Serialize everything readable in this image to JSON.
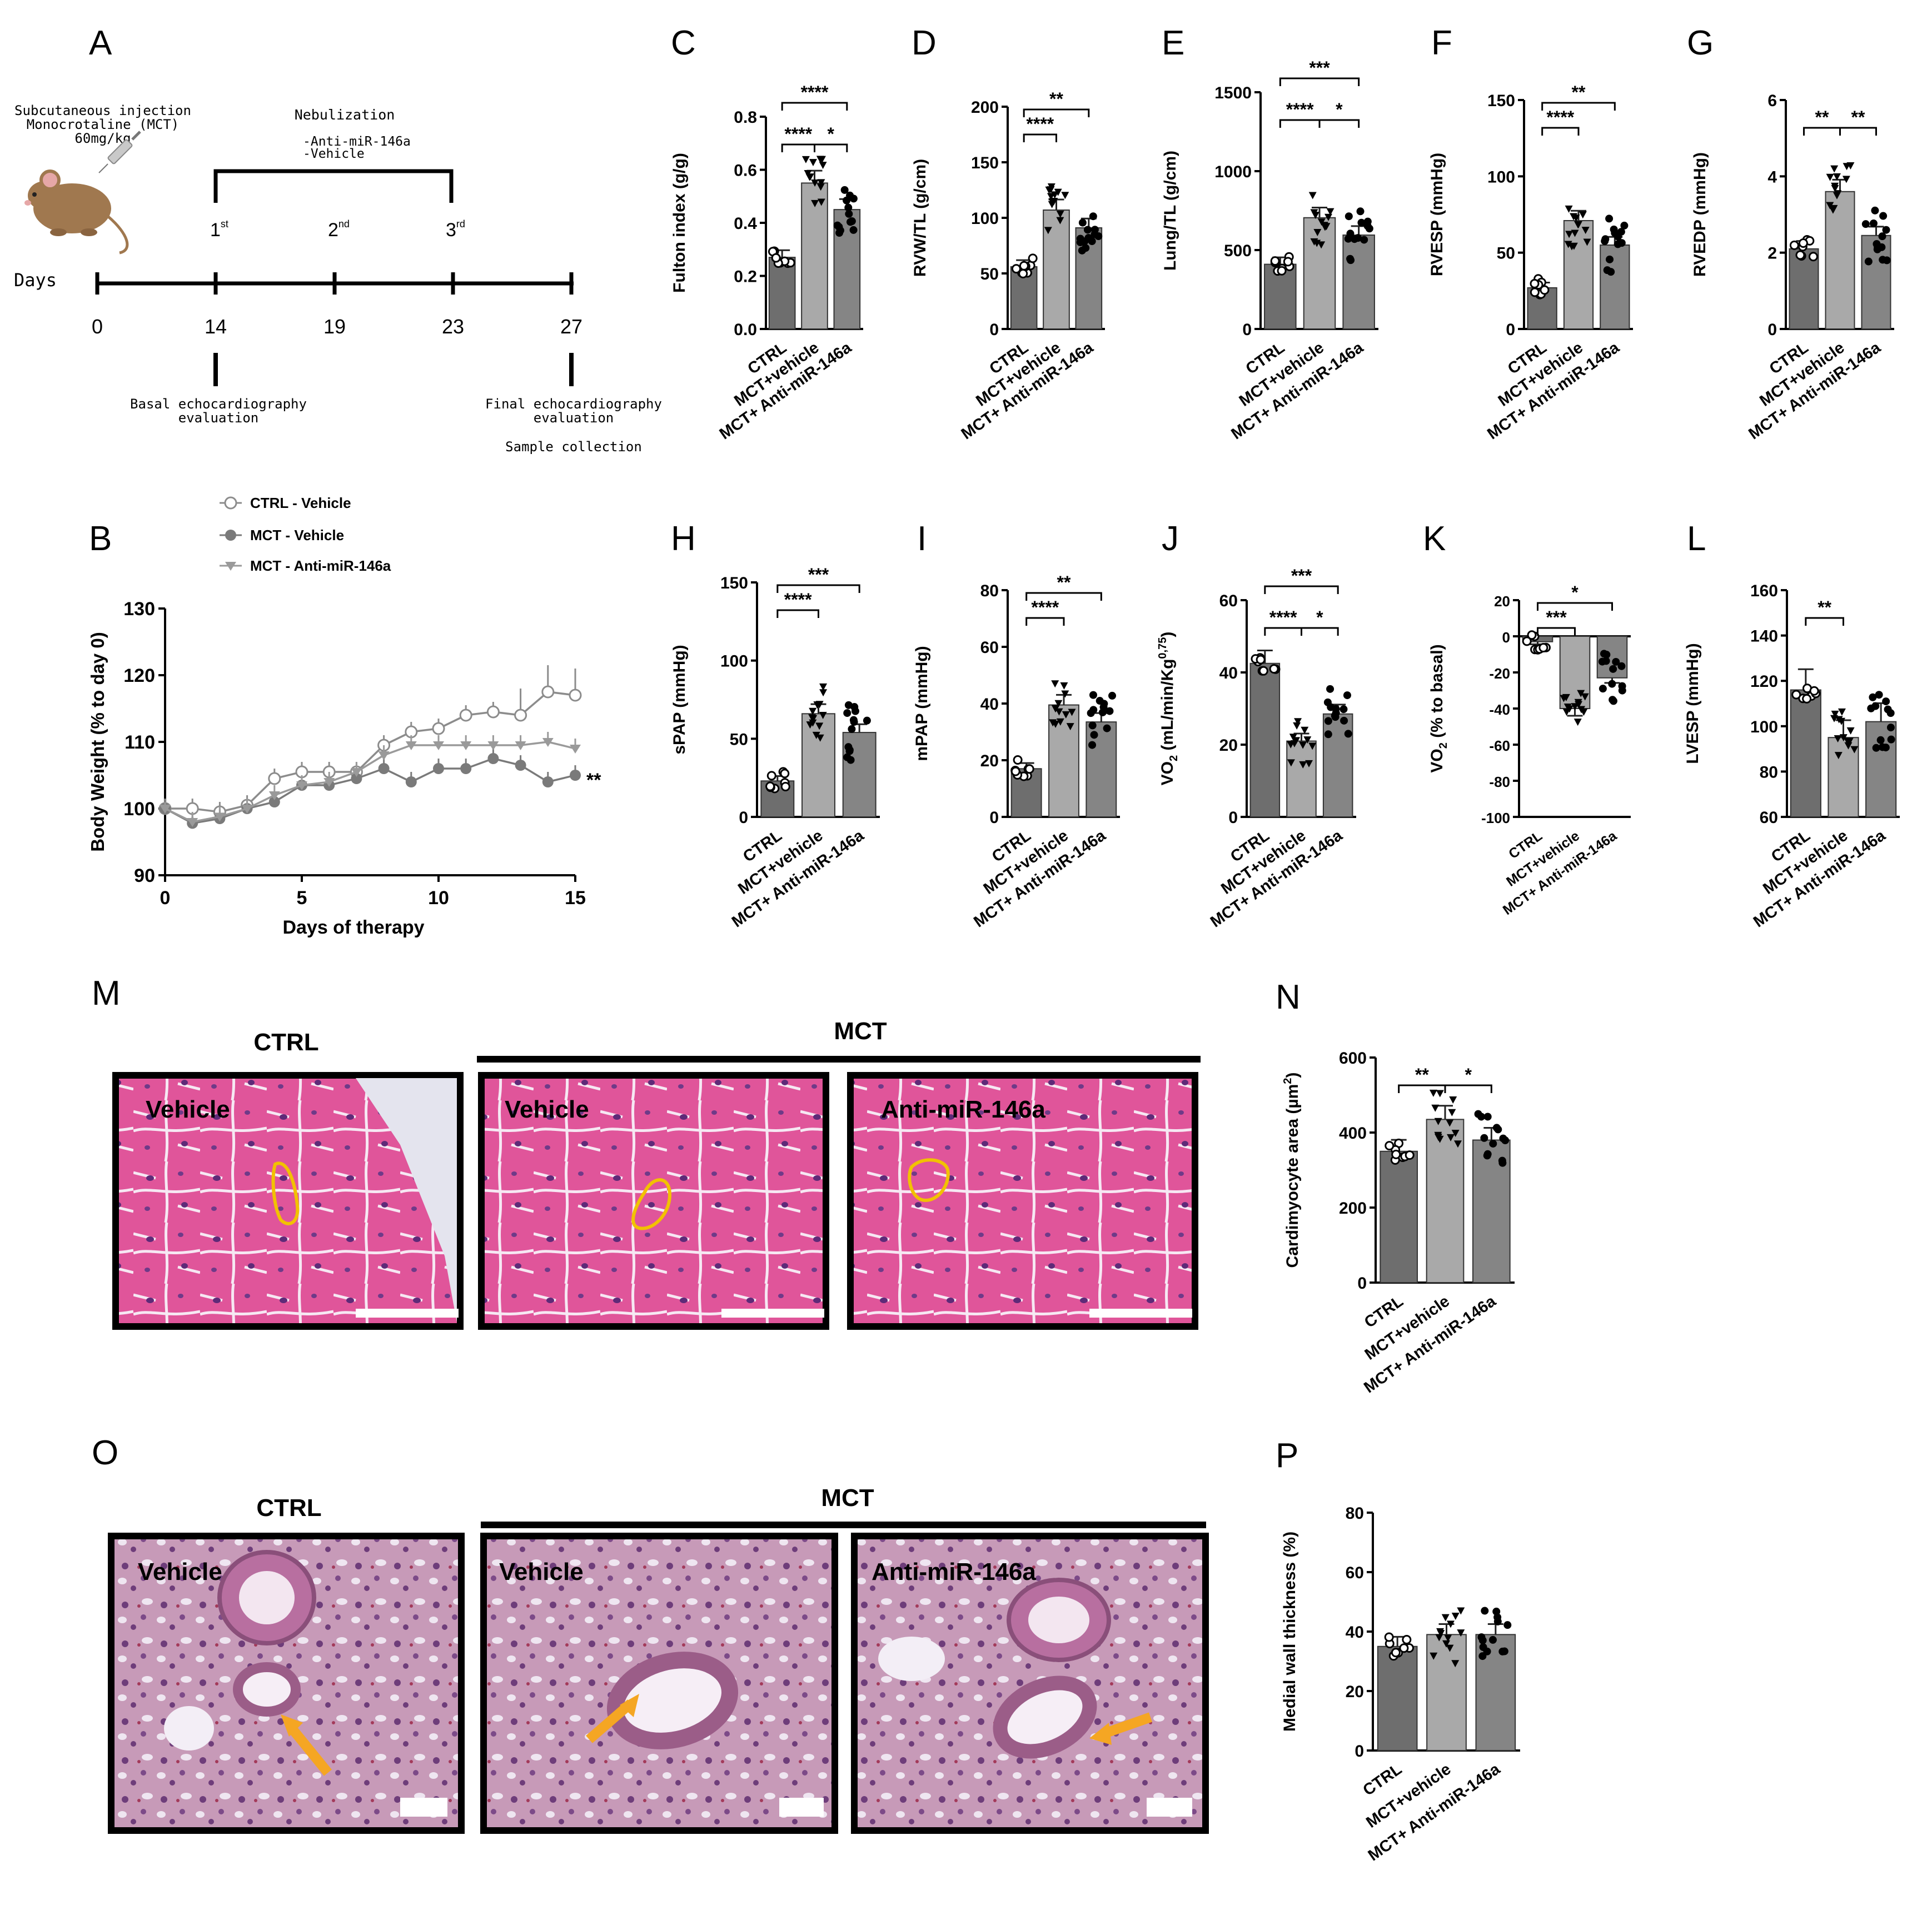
{
  "panel_labels": [
    "A",
    "B",
    "C",
    "D",
    "E",
    "F",
    "G",
    "H",
    "I",
    "J",
    "K",
    "L",
    "M",
    "N",
    "O",
    "P"
  ],
  "timeline": {
    "injection_lines": [
      "Subcutaneous injection",
      "Monocrotaline (MCT)",
      "60mg/kg"
    ],
    "nebulization_title": "Nebulization",
    "nebulization_items": [
      "-Anti-miR-146a",
      "-Vehicle"
    ],
    "doses": [
      {
        "n": "1",
        "sup": "st"
      },
      {
        "n": "2",
        "sup": "nd"
      },
      {
        "n": "3",
        "sup": "rd"
      }
    ],
    "days_label": "Days",
    "day_ticks": [
      "0",
      "14",
      "19",
      "23",
      "27"
    ],
    "basal_lines": [
      "Basal echocardiography",
      "evaluation"
    ],
    "final_lines": [
      "Final echocardiography",
      "evaluation"
    ],
    "sample_collection": "Sample collection"
  },
  "legend_b": [
    "CTRL - Vehicle",
    "MCT - Vehicle",
    "MCT - Anti-miR-146a"
  ],
  "colors": {
    "ctrl_bar": "#6e6e6e",
    "veh_bar": "#a9a9a9",
    "anti_bar": "#858585",
    "line_ctrl": "#8c8c8c",
    "line_mct": "#7a7a7a",
    "line_anti": "#9a9a9a",
    "outline_yellow": "#f2c100",
    "arrow_orange": "#f5a623",
    "he_stain_m": "#e0559a",
    "he_stain_o": "#c79ab8"
  },
  "bar_groups": [
    "CTRL",
    "MCT+vehicle",
    "MCT+ Anti-miR-146a"
  ],
  "chart_data": [
    {
      "panel": "B",
      "type": "line",
      "xlabel": "Days of therapy",
      "ylabel": "Body Weight (% to day 0)",
      "xlim": [
        0,
        15
      ],
      "ylim": [
        90,
        130
      ],
      "x_ticks": [
        "0",
        "5",
        "10",
        "15"
      ],
      "y_ticks": [
        "90",
        "100",
        "110",
        "120",
        "130"
      ],
      "annotation": "**",
      "x": [
        0,
        1,
        2,
        3,
        4,
        5,
        6,
        7,
        8,
        9,
        10,
        11,
        12,
        13,
        14,
        15
      ],
      "series": [
        {
          "name": "CTRL - Vehicle",
          "values": [
            100,
            100,
            99.5,
            100.5,
            104.5,
            105.5,
            105.5,
            105.5,
            109.5,
            111.5,
            112,
            114,
            114.5,
            114,
            117.5,
            117
          ]
        },
        {
          "name": "MCT - Vehicle",
          "values": [
            100,
            97.8,
            98.5,
            100,
            101,
            103.5,
            103.5,
            104.5,
            106,
            104,
            106,
            106,
            107.5,
            106.5,
            104,
            105
          ]
        },
        {
          "name": "MCT - Anti-miR-146a",
          "values": [
            100,
            98,
            98.8,
            100,
            102,
            103.5,
            104,
            105.5,
            108,
            109.5,
            109.5,
            109.5,
            109.5,
            109.5,
            110,
            109
          ]
        }
      ]
    },
    {
      "panel": "C",
      "type": "bar",
      "categories": [
        "CTRL",
        "MCT+vehicle",
        "MCT+ Anti-miR-146a"
      ],
      "ylabel": "Fulton index (g/g)",
      "ylim": [
        0,
        0.8
      ],
      "y_ticks": [
        "0.0",
        "0.2",
        "0.4",
        "0.6",
        "0.8"
      ],
      "values": [
        0.27,
        0.55,
        0.45
      ],
      "significance": [
        {
          "pair": [
            0,
            1
          ],
          "label": "****"
        },
        {
          "pair": [
            1,
            2
          ],
          "label": "*"
        },
        {
          "pair": [
            0,
            2
          ],
          "label": "****"
        }
      ]
    },
    {
      "panel": "D",
      "type": "bar",
      "categories": [
        "CTRL",
        "MCT+vehicle",
        "MCT+ Anti-miR-146a"
      ],
      "ylabel": "RVW/TL (g/cm)",
      "ylim": [
        0,
        200
      ],
      "y_ticks": [
        "0",
        "50",
        "100",
        "150",
        "200"
      ],
      "values": [
        56,
        107,
        91
      ],
      "significance": [
        {
          "pair": [
            0,
            1
          ],
          "label": "****"
        },
        {
          "pair": [
            0,
            2
          ],
          "label": "**"
        }
      ]
    },
    {
      "panel": "E",
      "type": "bar",
      "categories": [
        "CTRL",
        "MCT+vehicle",
        "MCT+ Anti-miR-146a"
      ],
      "ylabel": "Lung/TL (g/cm)",
      "ylim": [
        0,
        1500
      ],
      "y_ticks": [
        "0",
        "500",
        "1000",
        "1500"
      ],
      "values": [
        410,
        705,
        595
      ],
      "significance": [
        {
          "pair": [
            0,
            1
          ],
          "label": "****"
        },
        {
          "pair": [
            1,
            2
          ],
          "label": "*"
        },
        {
          "pair": [
            0,
            2
          ],
          "label": "***"
        }
      ]
    },
    {
      "panel": "F",
      "type": "bar",
      "categories": [
        "CTRL",
        "MCT+vehicle",
        "MCT+ Anti-miR-146a"
      ],
      "ylabel": "RVESP (mmHg)",
      "ylim": [
        0,
        150
      ],
      "y_ticks": [
        "0",
        "50",
        "100",
        "150"
      ],
      "values": [
        27,
        71,
        55
      ],
      "significance": [
        {
          "pair": [
            0,
            1
          ],
          "label": "****"
        },
        {
          "pair": [
            0,
            2
          ],
          "label": "**"
        }
      ]
    },
    {
      "panel": "G",
      "type": "bar",
      "categories": [
        "CTRL",
        "MCT+vehicle",
        "MCT+ Anti-miR-146a"
      ],
      "ylabel": "RVEDP (mmHg)",
      "ylim": [
        0,
        6
      ],
      "y_ticks": [
        "0",
        "2",
        "4",
        "6"
      ],
      "values": [
        2.1,
        3.6,
        2.45
      ],
      "significance": [
        {
          "pair": [
            0,
            1
          ],
          "label": "**"
        },
        {
          "pair": [
            1,
            2
          ],
          "label": "**"
        }
      ]
    },
    {
      "panel": "H",
      "type": "bar",
      "categories": [
        "CTRL",
        "MCT+vehicle",
        "MCT+ Anti-miR-146a"
      ],
      "ylabel": "sPAP (mmHg)",
      "ylim": [
        0,
        150
      ],
      "y_ticks": [
        "0",
        "50",
        "100",
        "150"
      ],
      "values": [
        23,
        66,
        54
      ],
      "significance": [
        {
          "pair": [
            0,
            1
          ],
          "label": "****"
        },
        {
          "pair": [
            0,
            2
          ],
          "label": "***"
        }
      ]
    },
    {
      "panel": "I",
      "type": "bar",
      "categories": [
        "CTRL",
        "MCT+vehicle",
        "MCT+ Anti-miR-146a"
      ],
      "ylabel": "mPAP (mmHg)",
      "ylim": [
        0,
        80
      ],
      "y_ticks": [
        "0",
        "20",
        "40",
        "60",
        "80"
      ],
      "values": [
        17,
        39.5,
        33.5
      ],
      "significance": [
        {
          "pair": [
            0,
            1
          ],
          "label": "****"
        },
        {
          "pair": [
            0,
            2
          ],
          "label": "**"
        }
      ]
    },
    {
      "panel": "J",
      "type": "bar",
      "categories": [
        "CTRL",
        "MCT+vehicle",
        "MCT+ Anti-miR-146a"
      ],
      "ylabel": "VO",
      "ylabel_sub": "2",
      "ylabel_rest": " (mL/min/Kg",
      "ylabel_sup": "0,75",
      "ylabel_end": ")",
      "ylim": [
        0,
        60
      ],
      "y_ticks": [
        "0",
        "20",
        "40",
        "60"
      ],
      "values": [
        42.5,
        21,
        28.5
      ],
      "significance": [
        {
          "pair": [
            0,
            1
          ],
          "label": "****"
        },
        {
          "pair": [
            1,
            2
          ],
          "label": "*"
        },
        {
          "pair": [
            0,
            2
          ],
          "label": "***"
        }
      ]
    },
    {
      "panel": "K",
      "type": "bar",
      "categories": [
        "CTRL",
        "MCT+vehicle",
        "MCT+ Anti-miR-146a"
      ],
      "ylabel": "VO",
      "ylabel_sub": "2",
      "ylabel_rest": " (% to basal)",
      "ylim": [
        -100,
        20
      ],
      "y_ticks": [
        "-100",
        "-80",
        "-60",
        "-40",
        "-20",
        "0",
        "20"
      ],
      "values": [
        -3,
        -40,
        -23
      ],
      "significance": [
        {
          "pair": [
            0,
            1
          ],
          "label": "***"
        },
        {
          "pair": [
            0,
            2
          ],
          "label": "*"
        }
      ]
    },
    {
      "panel": "L",
      "type": "bar",
      "categories": [
        "CTRL",
        "MCT+vehicle",
        "MCT+ Anti-miR-146a"
      ],
      "ylabel": "LVESP (mmHg)",
      "ylim": [
        60,
        160
      ],
      "y_ticks": [
        "60",
        "80",
        "100",
        "120",
        "140",
        "160"
      ],
      "values": [
        116,
        95,
        102
      ],
      "significance": [
        {
          "pair": [
            0,
            1
          ],
          "label": "**"
        }
      ]
    },
    {
      "panel": "N",
      "type": "bar",
      "categories": [
        "CTRL",
        "MCT+vehicle",
        "MCT+ Anti-miR-146a"
      ],
      "ylabel": "Cardimyocyte area (µm",
      "ylabel_sup": "2",
      "ylabel_end": ")",
      "ylim": [
        0,
        600
      ],
      "y_ticks": [
        "0",
        "200",
        "400",
        "600"
      ],
      "values": [
        350,
        435,
        380
      ],
      "significance": [
        {
          "pair": [
            0,
            1
          ],
          "label": "**"
        },
        {
          "pair": [
            1,
            2
          ],
          "label": "*"
        }
      ]
    },
    {
      "panel": "P",
      "type": "bar",
      "categories": [
        "CTRL",
        "MCT+vehicle",
        "MCT+ Anti-miR-146a"
      ],
      "ylabel": "Medial wall thickness (%)",
      "ylim": [
        0,
        80
      ],
      "y_ticks": [
        "0",
        "20",
        "40",
        "60",
        "80"
      ],
      "values": [
        35,
        39,
        39
      ],
      "significance": []
    }
  ],
  "histology_m": {
    "group_ctrl": "CTRL",
    "group_mct": "MCT",
    "panel_labels": [
      "Vehicle",
      "Vehicle",
      "Anti-miR-146a"
    ]
  },
  "histology_o": {
    "group_ctrl": "CTRL",
    "group_mct": "MCT",
    "panel_labels": [
      "Vehicle",
      "Vehicle",
      "Anti-miR-146a"
    ]
  }
}
